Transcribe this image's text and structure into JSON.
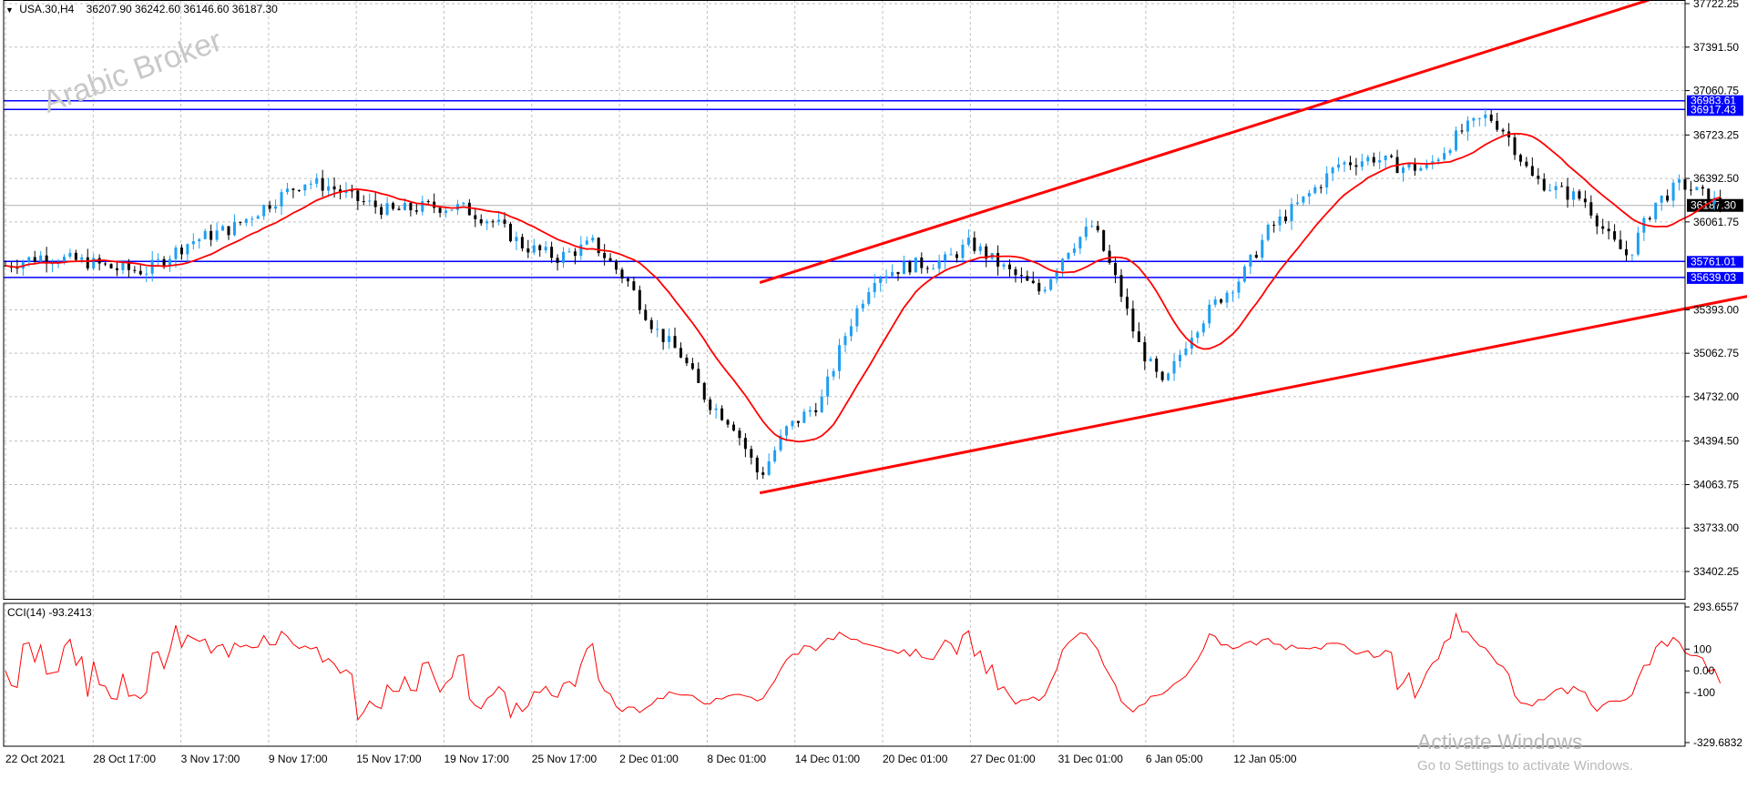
{
  "header": {
    "symbol": "USA.30,H4",
    "ohlc": "36207.90 36242.60 36146.60 36187.30"
  },
  "watermark": "Arabic Broker",
  "indicator": {
    "label": "CCI(14) -93.2413",
    "axis_labels": [
      "293.6557",
      "100",
      "0.00",
      "-100",
      "-329.6832"
    ],
    "axis_values": [
      293.6557,
      100,
      0,
      -100,
      -329.6832
    ],
    "line_color": "#ff0000"
  },
  "os_overlay": {
    "line1": "Activate Windows",
    "line2": "Go to Settings to activate Windows."
  },
  "colors": {
    "bull_candle": "#1e9ff2",
    "bear_candle": "#000000",
    "moving_average": "#ff0000",
    "channel": "#ff0000",
    "levels": "#0000ff",
    "grid": "#c0c0c0",
    "current_price_bg": "#000000"
  },
  "chart_data": {
    "type": "candlestick",
    "symbol": "USA.30",
    "timeframe": "H4",
    "x_tick_labels": [
      "22 Oct 2021",
      "28 Oct 17:00",
      "3 Nov 17:00",
      "9 Nov 17:00",
      "15 Nov 17:00",
      "19 Nov 17:00",
      "25 Nov 17:00",
      "2 Dec 01:00",
      "8 Dec 01:00",
      "14 Dec 01:00",
      "20 Dec 01:00",
      "27 Dec 01:00",
      "31 Dec 01:00",
      "6 Jan 05:00",
      "12 Jan 05:00"
    ],
    "y_tick_labels": [
      "37722.25",
      "37391.50",
      "37060.75",
      "36723.25",
      "36392.50",
      "36061.75",
      "35393.00",
      "35062.75",
      "34732.00",
      "34394.50",
      "34063.75",
      "33733.00",
      "33402.25"
    ],
    "ylim": [
      33250,
      37750
    ],
    "current_price": "36187.30",
    "horizontal_levels": [
      {
        "label": "36983.61",
        "value": 36983.61
      },
      {
        "label": "36917.43",
        "value": 36917.43
      },
      {
        "label": "35761.01",
        "value": 35761.01
      },
      {
        "label": "35639.03",
        "value": 35639.03
      }
    ],
    "close_path": [
      {
        "t": 0,
        "c": 35730
      },
      {
        "t": 0.4,
        "c": 35800
      },
      {
        "t": 0.9,
        "c": 35760
      },
      {
        "t": 1.3,
        "c": 35700
      },
      {
        "t": 1.6,
        "c": 35690
      },
      {
        "t": 2.1,
        "c": 35910
      },
      {
        "t": 2.6,
        "c": 36020
      },
      {
        "t": 3.0,
        "c": 36200
      },
      {
        "t": 3.4,
        "c": 36370
      },
      {
        "t": 3.7,
        "c": 36330
      },
      {
        "t": 4.0,
        "c": 36230
      },
      {
        "t": 4.4,
        "c": 36140
      },
      {
        "t": 4.8,
        "c": 36180
      },
      {
        "t": 5.2,
        "c": 36170
      },
      {
        "t": 5.6,
        "c": 36050
      },
      {
        "t": 5.9,
        "c": 35880
      },
      {
        "t": 6.3,
        "c": 35790
      },
      {
        "t": 6.7,
        "c": 35900
      },
      {
        "t": 7.1,
        "c": 35600
      },
      {
        "t": 7.4,
        "c": 35250
      },
      {
        "t": 7.7,
        "c": 35050
      },
      {
        "t": 8.0,
        "c": 34700
      },
      {
        "t": 8.3,
        "c": 34520
      },
      {
        "t": 8.6,
        "c": 34120
      },
      {
        "t": 8.9,
        "c": 34480
      },
      {
        "t": 9.3,
        "c": 34700
      },
      {
        "t": 9.6,
        "c": 35250
      },
      {
        "t": 9.9,
        "c": 35650
      },
      {
        "t": 10.3,
        "c": 35730
      },
      {
        "t": 10.7,
        "c": 35760
      },
      {
        "t": 11.0,
        "c": 35900
      },
      {
        "t": 11.4,
        "c": 35700
      },
      {
        "t": 11.8,
        "c": 35530
      },
      {
        "t": 12.1,
        "c": 35850
      },
      {
        "t": 12.4,
        "c": 36040
      },
      {
        "t": 12.7,
        "c": 35550
      },
      {
        "t": 12.9,
        "c": 35150
      },
      {
        "t": 13.2,
        "c": 34800
      },
      {
        "t": 13.5,
        "c": 35200
      },
      {
        "t": 13.8,
        "c": 35450
      },
      {
        "t": 14.1,
        "c": 35650
      },
      {
        "t": 14.4,
        "c": 36000
      },
      {
        "t": 14.8,
        "c": 36230
      },
      {
        "t": 15.2,
        "c": 36500
      },
      {
        "t": 15.6,
        "c": 36550
      },
      {
        "t": 15.9,
        "c": 36480
      },
      {
        "t": 16.2,
        "c": 36470
      },
      {
        "t": 16.6,
        "c": 36750
      },
      {
        "t": 16.9,
        "c": 36870
      },
      {
        "t": 17.1,
        "c": 36750
      },
      {
        "t": 17.4,
        "c": 36400
      },
      {
        "t": 17.7,
        "c": 36300
      },
      {
        "t": 18.0,
        "c": 36230
      },
      {
        "t": 18.3,
        "c": 35920
      },
      {
        "t": 18.5,
        "c": 35800
      },
      {
        "t": 18.8,
        "c": 36200
      },
      {
        "t": 19.1,
        "c": 36350
      },
      {
        "t": 19.4,
        "c": 36250
      },
      {
        "t": 19.55,
        "c": 36187.3
      }
    ],
    "overlays": [
      {
        "type": "moving_average",
        "color": "#ff0000"
      },
      {
        "type": "trend_channel",
        "color": "#ff0000",
        "lower": [
          {
            "t": 8.6,
            "v": 34000
          },
          {
            "t": 29.9,
            "v": 36830
          }
        ],
        "upper": [
          {
            "t": 8.6,
            "v": 35600
          },
          {
            "t": 19.3,
            "v": 37870
          }
        ]
      }
    ]
  }
}
